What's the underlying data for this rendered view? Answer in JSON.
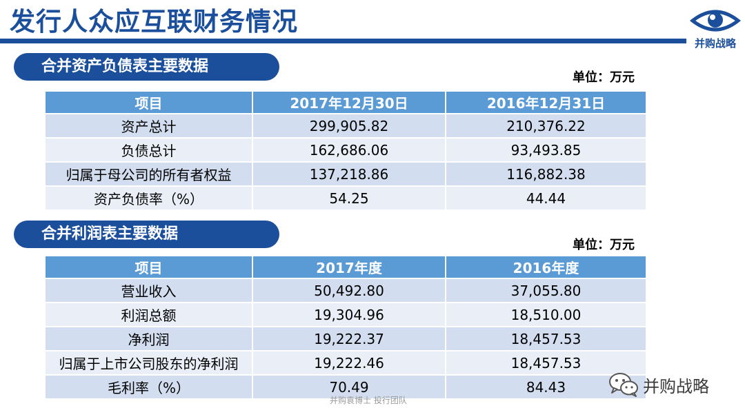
{
  "page": {
    "title": "发行人众应互联财务情况",
    "logo_text": "并购战略",
    "watermark": "并购袁博士 投行团队",
    "wechat_label": "并购战略"
  },
  "balance_sheet": {
    "section_title": "合并资产负债表主要数据",
    "unit": "单位：万元",
    "headers": [
      "项目",
      "2017年12月30日",
      "2016年12月31日"
    ],
    "rows": [
      [
        "资产总计",
        "299,905.82",
        "210,376.22"
      ],
      [
        "负债总计",
        "162,686.06",
        "93,493.85"
      ],
      [
        "归属于母公司的所有者权益",
        "137,218.86",
        "116,882.38"
      ],
      [
        "资产负债率（%）",
        "54.25",
        "44.44"
      ]
    ]
  },
  "income_statement": {
    "section_title": "合并利润表主要数据",
    "unit": "单位：万元",
    "headers": [
      "项目",
      "2017年度",
      "2016年度"
    ],
    "rows": [
      [
        "营业收入",
        "50,492.80",
        "37,055.80"
      ],
      [
        "利润总额",
        "19,304.96",
        "18,510.00"
      ],
      [
        "净利润",
        "19,222.37",
        "18,457.53"
      ],
      [
        "归属于上市公司股东的净利润",
        "19,222.46",
        "18,457.53"
      ],
      [
        "毛利率（%）",
        "70.49",
        "84.43"
      ]
    ]
  },
  "colors": {
    "brand_blue": "#1b4f9c",
    "header_blue": "#5b9bd5",
    "row_dark": "#d2deef",
    "row_light": "#eaeff7"
  }
}
